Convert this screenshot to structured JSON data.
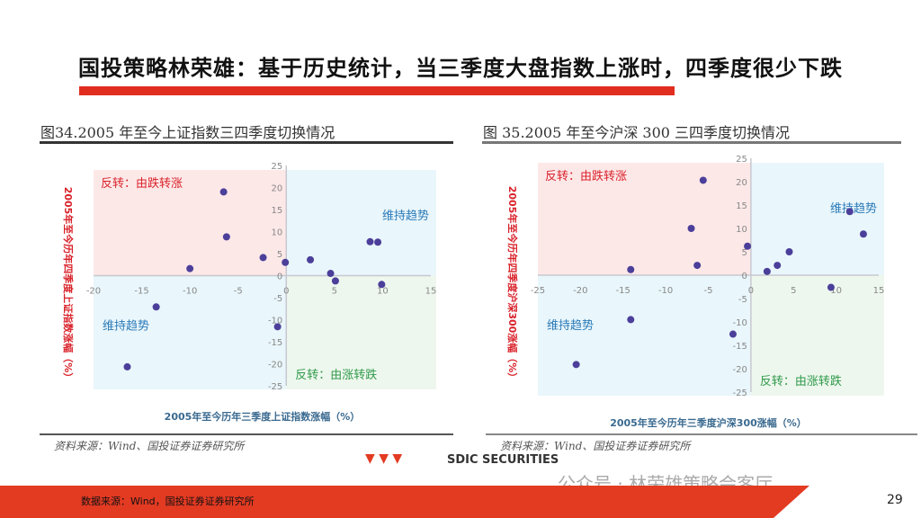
{
  "title": "国投策略林荣雄：基于历史统计，当三季度大盘指数上涨时，四季度很少下跌",
  "colors": {
    "accent": "#e12d1f",
    "point": "#4b3f9a",
    "reversal_up": "#d9222a",
    "trend": "#2a7ab8",
    "reversal_down": "#2f9a4a"
  },
  "footer": {
    "source": "数据来源：Wind，国投证券证券研究所",
    "page": "29",
    "watermark": "公众号 · 林荣雄策略会客厅",
    "logo": "SDIC SECURITIES"
  },
  "chart_data": [
    {
      "type": "scatter",
      "title": "图34.2005 年至今上证指数三四季度切换情况",
      "xlabel": "2005年至今历年三季度上证指数涨幅（%）",
      "ylabel": "2005年至今历年四季度上证指数涨幅（%）",
      "xlim": [
        -20,
        15
      ],
      "ylim": [
        -25,
        25
      ],
      "xticks": [
        -20,
        -15,
        -10,
        -5,
        0,
        5,
        10,
        15
      ],
      "yticks": [
        -25,
        -20,
        -15,
        -10,
        -5,
        0,
        5,
        10,
        15,
        20,
        25
      ],
      "quadrant_labels": {
        "top_left": "反转：由跌转涨",
        "top_right": "维持趋势",
        "bottom_left": "维持趋势",
        "bottom_right": "反转：由涨转跌"
      },
      "points": [
        [
          -6.5,
          19.0
        ],
        [
          -6.2,
          8.8
        ],
        [
          -10,
          1.6
        ],
        [
          -2.4,
          4.1
        ],
        [
          -0.1,
          3.0
        ],
        [
          2.5,
          3.6
        ],
        [
          4.6,
          0.5
        ],
        [
          5.1,
          -1.2
        ],
        [
          8.7,
          7.7
        ],
        [
          9.5,
          7.6
        ],
        [
          9.9,
          -2.0
        ],
        [
          -13.5,
          -7.1
        ],
        [
          -0.9,
          -11.6
        ],
        [
          -16.5,
          -20.7
        ]
      ],
      "source": "资料来源：Wind、国投证券证券研究所"
    },
    {
      "type": "scatter",
      "title": "图 35.2005 年至今沪深 300 三四季度切换情况",
      "xlabel": "2005年至今历年三季度沪深300涨幅（%）",
      "ylabel": "2005年至今历年四季度沪深300涨幅（%）",
      "xlim": [
        -25,
        15
      ],
      "ylim": [
        -25,
        25
      ],
      "xticks": [
        -25,
        -20,
        -15,
        -10,
        -5,
        0,
        5,
        10,
        15
      ],
      "yticks": [
        -25,
        -20,
        -15,
        -10,
        -5,
        0,
        5,
        10,
        15,
        20,
        25
      ],
      "quadrant_labels": {
        "top_left": "反转：由跌转涨",
        "top_right": "维持趋势",
        "bottom_left": "维持趋势",
        "bottom_right": "反转：由涨转跌"
      },
      "points": [
        [
          -5.6,
          20.3
        ],
        [
          -7.0,
          10.0
        ],
        [
          -6.3,
          2.1
        ],
        [
          -14.1,
          1.2
        ],
        [
          -0.4,
          6.2
        ],
        [
          1.9,
          0.8
        ],
        [
          3.1,
          2.1
        ],
        [
          4.5,
          5.0
        ],
        [
          9.4,
          -2.6
        ],
        [
          11.6,
          13.6
        ],
        [
          13.2,
          8.8
        ],
        [
          -14.1,
          -9.5
        ],
        [
          -2.1,
          -12.6
        ],
        [
          -20.5,
          -19.1
        ]
      ],
      "source": "资料来源：Wind、国投证券证券研究所"
    }
  ]
}
